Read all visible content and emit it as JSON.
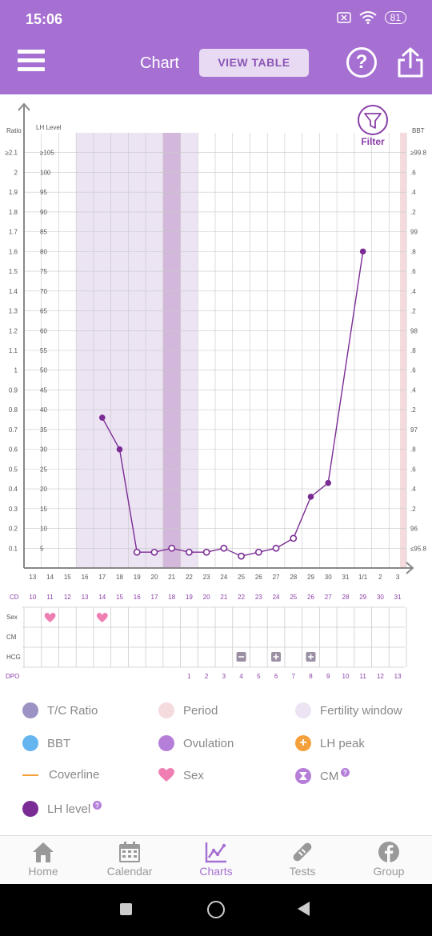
{
  "status": {
    "time": "15:06",
    "battery": "81"
  },
  "header": {
    "title": "Chart",
    "view_table": "VIEW TABLE"
  },
  "chart_data": {
    "type": "line",
    "left_axis_ratio_label": "Ratio",
    "left_axis_lh_label": "LH Level",
    "right_axis_label": "BBT",
    "filter_label": "Filter",
    "ratio_ticks": [
      "≥2.1",
      "2",
      "1.9",
      "1.8",
      "1.7",
      "1.6",
      "1.5",
      "1.4",
      "1.3",
      "1.2",
      "1.1",
      "1",
      "0.9",
      "0.8",
      "0.7",
      "0.6",
      "0.5",
      "0.4",
      "0.3",
      "0.2",
      "0.1"
    ],
    "lh_ticks": [
      "≥105",
      "100",
      "95",
      "90",
      "85",
      "80",
      "75",
      "70",
      "65",
      "60",
      "55",
      "50",
      "45",
      "40",
      "35",
      "30",
      "25",
      "20",
      "15",
      "10",
      "5"
    ],
    "bbt_ticks": [
      "≥99.8",
      ".6",
      ".4",
      ".2",
      "99",
      ".8",
      ".6",
      ".4",
      ".2",
      "98",
      ".8",
      ".6",
      ".4",
      ".2",
      "97",
      ".8",
      ".6",
      ".4",
      ".2",
      "96",
      "≤95.8"
    ],
    "dates": [
      "13",
      "14",
      "15",
      "16",
      "17",
      "18",
      "19",
      "20",
      "21",
      "22",
      "23",
      "24",
      "25",
      "26",
      "27",
      "28",
      "29",
      "30",
      "31",
      "1/1",
      "2",
      "3"
    ],
    "cd": [
      "10",
      "11",
      "12",
      "13",
      "14",
      "15",
      "16",
      "17",
      "18",
      "19",
      "20",
      "21",
      "22",
      "23",
      "24",
      "25",
      "26",
      "27",
      "28",
      "29",
      "30",
      "31"
    ],
    "dpo": [
      "",
      "",
      "",
      "",
      "",
      "",
      "",
      "",
      "",
      "1",
      "2",
      "3",
      "4",
      "5",
      "6",
      "7",
      "8",
      "9",
      "10",
      "11",
      "12",
      "13"
    ],
    "row_labels": {
      "cd": "CD",
      "sex": "Sex",
      "cm": "CM",
      "hcg": "HCG",
      "dpo": "DPO"
    },
    "series": [
      {
        "values": [
          null,
          null,
          null,
          null,
          0.76,
          0.6,
          0.08,
          0.08,
          0.1,
          0.08,
          0.08,
          0.1,
          0.06,
          0.08,
          0.1,
          0.15,
          0.36,
          0.43,
          null,
          1.6,
          null,
          null
        ]
      }
    ],
    "ylim": [
      0,
      2.2
    ],
    "fertility_window_index": [
      3,
      9
    ],
    "ovulation_index": 8,
    "sex_index": [
      1,
      4
    ],
    "hcg": [
      {
        "index": 12,
        "mark": "minus"
      },
      {
        "index": 14,
        "mark": "plus"
      },
      {
        "index": 16,
        "mark": "plus"
      }
    ]
  },
  "legend": {
    "tc_ratio": "T/C Ratio",
    "period": "Period",
    "fertility": "Fertility window",
    "bbt": "BBT",
    "ovulation": "Ovulation",
    "lh_peak": "LH peak",
    "coverline": "Coverline",
    "sex": "Sex",
    "cm": "CM",
    "lh_level": "LH level"
  },
  "colors": {
    "brand": "#a66fd2",
    "tc_ratio": "#9c93c4",
    "period": "#f5dade",
    "fertility": "#ece3f3",
    "bbt": "#64b5f0",
    "ovulation": "#b57fd9",
    "lh_peak": "#f5a13b",
    "coverline": "#f5a13b",
    "sex": "#ef7fb3",
    "cm": "#b57fd9",
    "lh_level": "#7a2c94"
  },
  "nav": {
    "home": "Home",
    "calendar": "Calendar",
    "charts": "Charts",
    "tests": "Tests",
    "group": "Group"
  }
}
